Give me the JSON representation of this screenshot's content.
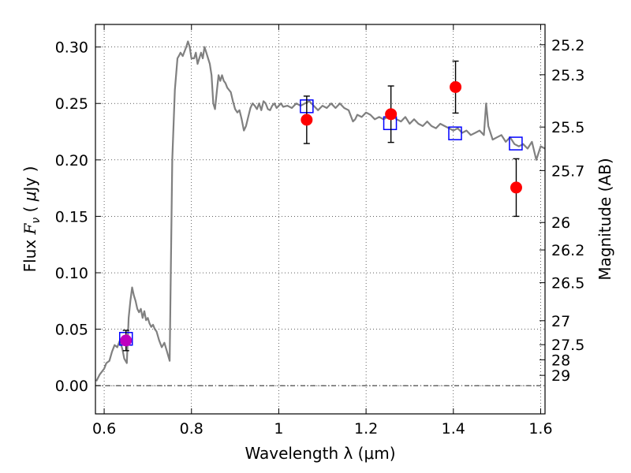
{
  "chart_data": {
    "type": "scatter",
    "xlabel": "Wavelength  λ (μm)",
    "ylabel": "Flux  F_ν  ( μJy )",
    "ylabel_parts": {
      "prefix": "Flux  ",
      "sym": "F",
      "sub": "ν",
      "mid": "  ( ",
      "mu": "μ",
      "unit": "Jy )"
    },
    "y2label": "Magnitude (AB)",
    "xlim": [
      0.58,
      1.61
    ],
    "ylim": [
      -0.025,
      0.32
    ],
    "grid": true,
    "zero_line": true,
    "x_ticks": [
      {
        "value": 0.6,
        "label": "0.6"
      },
      {
        "value": 0.8,
        "label": "0.8"
      },
      {
        "value": 1.0,
        "label": "1"
      },
      {
        "value": 1.2,
        "label": "1.2"
      },
      {
        "value": 1.4,
        "label": "1.4"
      },
      {
        "value": 1.6,
        "label": "1.6"
      }
    ],
    "y_ticks": [
      {
        "value": 0.0,
        "label": "0.00"
      },
      {
        "value": 0.05,
        "label": "0.05"
      },
      {
        "value": 0.1,
        "label": "0.10"
      },
      {
        "value": 0.15,
        "label": "0.15"
      },
      {
        "value": 0.2,
        "label": "0.20"
      },
      {
        "value": 0.25,
        "label": "0.25"
      },
      {
        "value": 0.3,
        "label": "0.30"
      }
    ],
    "y2_ticks": [
      {
        "mag": 25.2,
        "label": "25.2"
      },
      {
        "mag": 25.3,
        "label": "25.3"
      },
      {
        "mag": 25.5,
        "label": "25.5"
      },
      {
        "mag": 25.7,
        "label": "25.7"
      },
      {
        "mag": 26.0,
        "label": "26"
      },
      {
        "mag": 26.2,
        "label": "26.2"
      },
      {
        "mag": 26.5,
        "label": "26.5"
      },
      {
        "mag": 27.0,
        "label": "27"
      },
      {
        "mag": 27.5,
        "label": "27.5"
      },
      {
        "mag": 28.0,
        "label": "28"
      },
      {
        "mag": 29.0,
        "label": "29"
      }
    ],
    "series": [
      {
        "kind": "line",
        "color": "#808080",
        "x": [
          0.582,
          0.59,
          0.6,
          0.605,
          0.612,
          0.618,
          0.624,
          0.63,
          0.636,
          0.642,
          0.646,
          0.652,
          0.656,
          0.66,
          0.664,
          0.668,
          0.672,
          0.676,
          0.68,
          0.684,
          0.688,
          0.692,
          0.696,
          0.7,
          0.704,
          0.708,
          0.712,
          0.716,
          0.72,
          0.726,
          0.732,
          0.738,
          0.744,
          0.75,
          0.756,
          0.762,
          0.768,
          0.771,
          0.775,
          0.78,
          0.784,
          0.788,
          0.792,
          0.796,
          0.8,
          0.806,
          0.81,
          0.814,
          0.818,
          0.822,
          0.826,
          0.83,
          0.834,
          0.838,
          0.842,
          0.846,
          0.85,
          0.854,
          0.858,
          0.862,
          0.866,
          0.87,
          0.874,
          0.878,
          0.882,
          0.886,
          0.89,
          0.895,
          0.9,
          0.905,
          0.91,
          0.915,
          0.92,
          0.925,
          0.93,
          0.935,
          0.94,
          0.945,
          0.95,
          0.955,
          0.96,
          0.965,
          0.97,
          0.975,
          0.98,
          0.985,
          0.99,
          0.995,
          1.0,
          1.005,
          1.01,
          1.02,
          1.03,
          1.04,
          1.05,
          1.06,
          1.07,
          1.08,
          1.09,
          1.1,
          1.11,
          1.12,
          1.13,
          1.14,
          1.15,
          1.16,
          1.17,
          1.175,
          1.18,
          1.19,
          1.2,
          1.21,
          1.22,
          1.23,
          1.24,
          1.25,
          1.26,
          1.27,
          1.28,
          1.29,
          1.3,
          1.31,
          1.32,
          1.33,
          1.34,
          1.35,
          1.36,
          1.37,
          1.38,
          1.39,
          1.4,
          1.41,
          1.42,
          1.43,
          1.44,
          1.45,
          1.46,
          1.47,
          1.475,
          1.48,
          1.49,
          1.5,
          1.51,
          1.52,
          1.53,
          1.54,
          1.55,
          1.56,
          1.57,
          1.58,
          1.59,
          1.6,
          1.61
        ],
        "y": [
          0.004,
          0.01,
          0.015,
          0.02,
          0.022,
          0.03,
          0.036,
          0.034,
          0.04,
          0.032,
          0.024,
          0.02,
          0.06,
          0.075,
          0.087,
          0.08,
          0.075,
          0.068,
          0.065,
          0.068,
          0.06,
          0.066,
          0.058,
          0.06,
          0.055,
          0.052,
          0.054,
          0.05,
          0.048,
          0.04,
          0.034,
          0.038,
          0.03,
          0.022,
          0.2,
          0.262,
          0.29,
          0.292,
          0.295,
          0.292,
          0.296,
          0.3,
          0.305,
          0.3,
          0.29,
          0.29,
          0.295,
          0.285,
          0.29,
          0.295,
          0.29,
          0.3,
          0.295,
          0.29,
          0.285,
          0.275,
          0.25,
          0.245,
          0.26,
          0.275,
          0.27,
          0.275,
          0.27,
          0.268,
          0.264,
          0.262,
          0.26,
          0.252,
          0.245,
          0.242,
          0.244,
          0.236,
          0.226,
          0.23,
          0.238,
          0.246,
          0.25,
          0.248,
          0.245,
          0.25,
          0.244,
          0.252,
          0.25,
          0.245,
          0.244,
          0.248,
          0.25,
          0.246,
          0.248,
          0.25,
          0.247,
          0.248,
          0.246,
          0.25,
          0.248,
          0.25,
          0.252,
          0.248,
          0.244,
          0.248,
          0.246,
          0.25,
          0.246,
          0.25,
          0.246,
          0.244,
          0.234,
          0.236,
          0.24,
          0.238,
          0.242,
          0.24,
          0.236,
          0.238,
          0.236,
          0.238,
          0.24,
          0.236,
          0.234,
          0.238,
          0.232,
          0.236,
          0.232,
          0.23,
          0.234,
          0.23,
          0.228,
          0.232,
          0.23,
          0.228,
          0.226,
          0.228,
          0.224,
          0.226,
          0.222,
          0.224,
          0.226,
          0.222,
          0.25,
          0.23,
          0.218,
          0.22,
          0.222,
          0.216,
          0.22,
          0.214,
          0.212,
          0.214,
          0.21,
          0.216,
          0.2,
          0.212,
          0.21
        ]
      },
      {
        "kind": "open-square",
        "color": "#0000ff",
        "x": [
          0.65,
          1.064,
          1.255,
          1.404,
          1.543
        ],
        "y": [
          0.0415,
          0.2475,
          0.2325,
          0.2235,
          0.2145
        ]
      },
      {
        "kind": "errorbar-circle",
        "color": "#ff0000",
        "x": [
          1.064,
          1.257,
          1.405,
          1.544
        ],
        "y": [
          0.2355,
          0.2405,
          0.2645,
          0.1755
        ],
        "err": [
          0.021,
          0.025,
          0.023,
          0.0255
        ]
      },
      {
        "kind": "errorbar-circle",
        "color": "#bf00bf",
        "x": [
          0.65
        ],
        "y": [
          0.04
        ],
        "err": [
          0.009
        ]
      }
    ]
  }
}
